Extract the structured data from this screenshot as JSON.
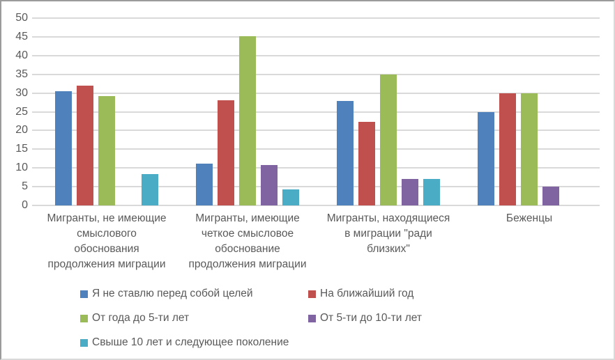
{
  "chart_data": {
    "type": "bar",
    "title": "",
    "xlabel": "",
    "ylabel": "",
    "ylim": [
      0,
      50
    ],
    "ytick_step": 5,
    "yticks": [
      0,
      5,
      10,
      15,
      20,
      25,
      30,
      35,
      40,
      45,
      50
    ],
    "grid": "horizontal",
    "gridline_color": "#d9d9d9",
    "axis_text_color": "#595959",
    "legend_position": "bottom-two-columns",
    "categories": [
      {
        "label": "Мигранты, не имеющие смыслового обоснования продолжения миграции",
        "lines": [
          "Мигранты, не имеющие",
          "смыслового",
          "обоснования",
          "продолжения миграции"
        ]
      },
      {
        "label": "Мигранты, имеющие четкое смысловое обоснование продолжения миграции",
        "lines": [
          "Мигранты, имеющие",
          "четкое смысловое",
          "обоснование",
          "продолжения миграции"
        ]
      },
      {
        "label": "Мигранты, находящиеся в миграции \"ради близких\"",
        "lines": [
          "Мигранты, находящиеся",
          "в миграции \"ради",
          "близких\""
        ]
      },
      {
        "label": "Беженцы",
        "lines": [
          "Беженцы"
        ]
      }
    ],
    "series": [
      {
        "name": "Я не ставлю перед собой целей",
        "color": "#4F81BD",
        "values": [
          30.4,
          11.1,
          27.8,
          25.0
        ]
      },
      {
        "name": "На ближайший год",
        "color": "#C0504D",
        "values": [
          32.0,
          28.0,
          22.3,
          30.0
        ]
      },
      {
        "name": "От года до 5-ти лет",
        "color": "#9BBB59",
        "values": [
          29.1,
          45.2,
          34.9,
          30.0
        ]
      },
      {
        "name": "От 5-ти до 10-ти лет",
        "color": "#8064A2",
        "values": [
          0,
          10.7,
          7.0,
          5.0
        ]
      },
      {
        "name": "Свыше 10 лет и следующее поколение",
        "color": "#4BACC6",
        "values": [
          8.3,
          4.3,
          7.0,
          0
        ]
      }
    ]
  }
}
